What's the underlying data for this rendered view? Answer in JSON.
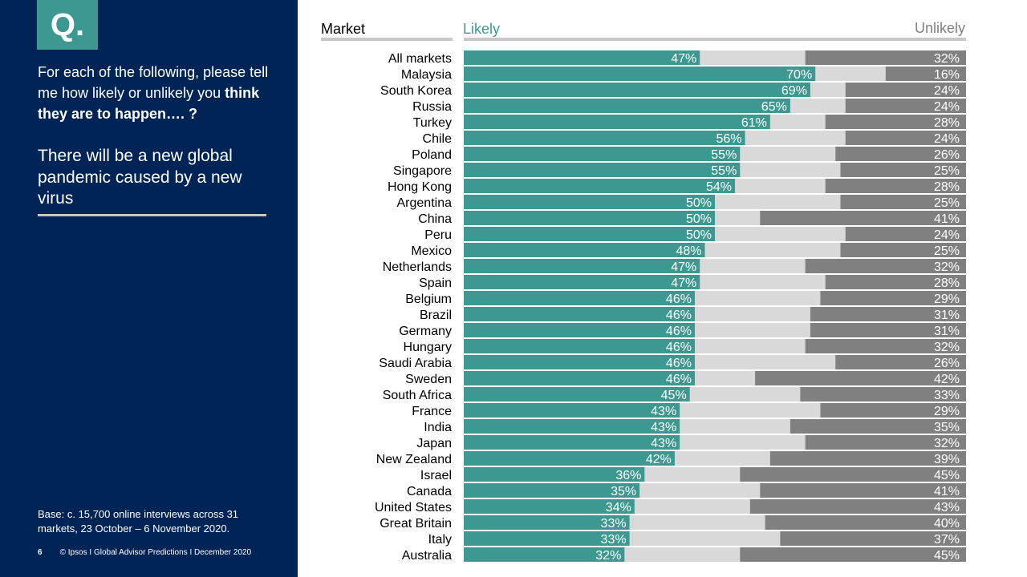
{
  "sidebar": {
    "badge": "Q.",
    "question_pre": "For each of the following, please tell me how likely or unlikely you",
    "question_bold": "think they are to happen…. ?",
    "statement": "There will be a new global pandemic caused by a new virus",
    "base_note": "Base: c. 15,700 online interviews across 31 markets,  23 October – 6 November 2020.",
    "page_number": "6",
    "footer": "© Ipsos I Global Advisor Predictions I December 2020"
  },
  "colors": {
    "likely": "#3d9891",
    "neutral": "#d9d9d9",
    "unlikely": "#808080",
    "sidebar_bg": "#002456"
  },
  "chart_data": {
    "type": "bar",
    "stacked": true,
    "orientation": "horizontal",
    "xlabel": "Market",
    "series_labels": {
      "likely": "Likely",
      "unlikely": "Unlikely"
    },
    "categories": [
      "All markets",
      "Malaysia",
      "South Korea",
      "Russia",
      "Turkey",
      "Chile",
      "Poland",
      "Singapore",
      "Hong Kong",
      "Argentina",
      "China",
      "Peru",
      "Mexico",
      "Netherlands",
      "Spain",
      "Belgium",
      "Brazil",
      "Germany",
      "Hungary",
      "Saudi Arabia",
      "Sweden",
      "South Africa",
      "France",
      "India",
      "Japan",
      "New Zealand",
      "Israel",
      "Canada",
      "United States",
      "Great Britain",
      "Italy",
      "Australia"
    ],
    "series": [
      {
        "name": "Likely",
        "values": [
          47,
          70,
          69,
          65,
          61,
          56,
          55,
          55,
          54,
          50,
          50,
          50,
          48,
          47,
          47,
          46,
          46,
          46,
          46,
          46,
          46,
          45,
          43,
          43,
          43,
          42,
          36,
          35,
          34,
          33,
          33,
          32
        ]
      },
      {
        "name": "Unlikely",
        "values": [
          32,
          16,
          24,
          24,
          28,
          24,
          26,
          25,
          28,
          25,
          41,
          24,
          25,
          32,
          28,
          29,
          31,
          31,
          32,
          26,
          42,
          33,
          29,
          35,
          32,
          39,
          45,
          41,
          43,
          40,
          37,
          45
        ]
      }
    ],
    "value_suffix": "%",
    "xlim": [
      0,
      100
    ]
  }
}
